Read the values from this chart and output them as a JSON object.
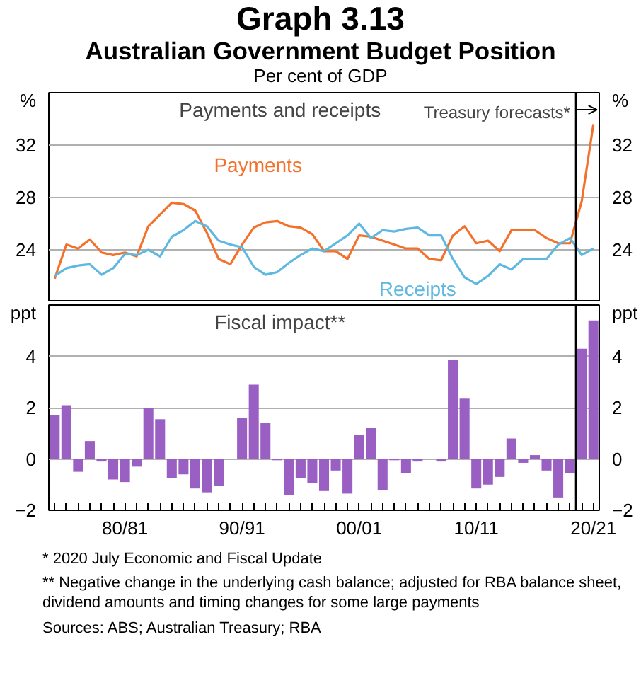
{
  "chart_data": [
    {
      "type": "line",
      "title": "Graph 3.13",
      "subtitle": "Australian Government Budget Position",
      "categories": [
        null,
        null,
        null,
        null,
        null,
        null,
        null,
        null,
        null,
        null,
        null,
        null,
        null,
        null,
        null,
        null,
        null,
        null,
        null,
        null,
        null,
        null,
        null,
        null,
        null,
        null,
        null,
        null,
        null,
        null,
        null,
        null,
        null,
        null,
        null,
        null,
        null,
        null,
        null,
        null,
        null,
        null,
        null,
        null,
        null,
        null,
        null
      ],
      "series": [
        {
          "name": "Payments",
          "color": "#f4712b",
          "values": [
            21.8,
            24.4,
            24.1,
            24.8,
            23.8,
            23.6,
            23.8,
            23.5,
            25.8,
            26.7,
            27.6,
            27.5,
            27.0,
            25.3,
            23.3,
            22.9,
            24.4,
            25.7,
            26.1,
            26.2,
            25.8,
            25.7,
            25.2,
            23.9,
            23.9,
            23.3,
            25.1,
            25.0,
            24.7,
            24.4,
            24.1,
            24.1,
            23.3,
            23.2,
            25.1,
            25.8,
            24.5,
            24.7,
            23.9,
            25.5,
            25.5,
            25.5,
            24.9,
            24.5,
            24.5,
            27.7,
            33.6
          ]
        },
        {
          "name": "Receipts",
          "color": "#5fb8e0",
          "values": [
            22.0,
            22.6,
            22.8,
            22.9,
            22.1,
            22.6,
            23.7,
            23.6,
            24.0,
            23.5,
            25.0,
            25.5,
            26.2,
            25.8,
            24.7,
            24.4,
            24.2,
            22.7,
            22.1,
            22.3,
            23.0,
            23.6,
            24.1,
            23.9,
            24.5,
            25.1,
            26.0,
            24.9,
            25.5,
            25.4,
            25.6,
            25.7,
            25.1,
            25.1,
            23.3,
            21.9,
            21.4,
            22.0,
            22.9,
            22.5,
            23.3,
            23.3,
            23.3,
            24.4,
            24.9,
            23.6,
            24.1
          ]
        }
      ],
      "ylim": [
        20,
        36
      ],
      "yticks": [
        24,
        28,
        32
      ],
      "y2lim": [
        20,
        36
      ],
      "y2ticks": [
        24,
        28,
        32
      ],
      "ylabel": "%",
      "y2label": "%",
      "grid": "y",
      "tick_labels": "y",
      "annotations": [
        "Per cent of GDP",
        "Payments and receipts",
        "Treasury forecasts*"
      ]
    },
    {
      "type": "bar",
      "title": "Fiscal impact**",
      "categories": [
        null,
        null,
        null,
        null,
        null,
        null,
        "80/81",
        null,
        null,
        null,
        null,
        null,
        null,
        null,
        null,
        null,
        "90/91",
        null,
        null,
        null,
        null,
        null,
        null,
        null,
        null,
        null,
        "00/01",
        null,
        null,
        null,
        null,
        null,
        null,
        null,
        null,
        null,
        "10/11",
        null,
        null,
        null,
        null,
        null,
        null,
        null,
        null,
        null,
        "20/21"
      ],
      "values": [
        1.7,
        2.1,
        -0.5,
        0.7,
        -0.1,
        -0.8,
        -0.9,
        -0.3,
        2.0,
        1.55,
        -0.75,
        -0.6,
        -1.15,
        -1.3,
        -1.05,
        0.0,
        1.6,
        2.9,
        1.4,
        -0.05,
        -1.4,
        -0.75,
        -0.95,
        -1.25,
        -0.45,
        -1.35,
        0.95,
        1.2,
        -1.2,
        -0.05,
        -0.55,
        -0.1,
        0.0,
        -0.1,
        3.85,
        2.35,
        -1.15,
        -1.0,
        -0.7,
        0.8,
        -0.15,
        0.15,
        -0.45,
        -1.5,
        -0.55,
        4.3,
        5.4
      ],
      "color": "#9a5fc3",
      "ylim": [
        -2,
        6
      ],
      "yticks": [
        -2,
        0,
        2,
        4
      ],
      "y2lim": [
        -2,
        6
      ],
      "y2ticks": [
        -2,
        0,
        2,
        4
      ],
      "ylabel": "ppt",
      "y2label": "ppt",
      "grid": "y",
      "annotations": [
        "* 2020 July Economic and Fiscal Update",
        "** Negative change in the underlying cash balance; adjusted for RBA balance sheet, dividend amounts and timing changes for some large payments",
        "Sources: ABS; Australian Treasury; RBA"
      ]
    }
  ]
}
